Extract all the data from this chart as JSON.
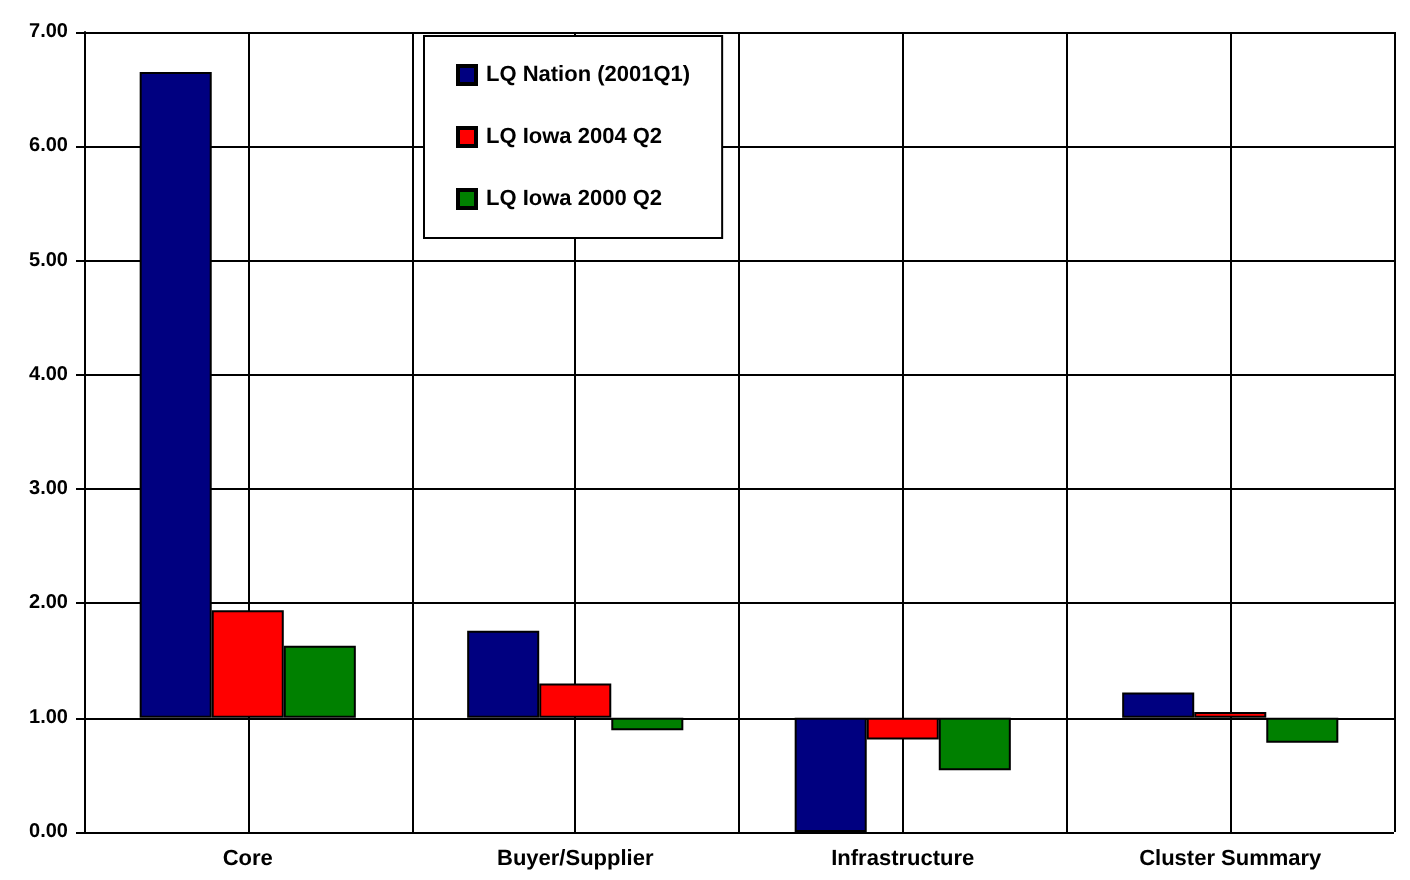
{
  "chart_data": {
    "type": "bar",
    "categories": [
      "Core",
      "Buyer/Supplier",
      "Infrastructure",
      "Cluster Summary"
    ],
    "series": [
      {
        "name": "LQ Nation (2001Q1)",
        "color": "#000080",
        "base": [
          1,
          1,
          1,
          1
        ],
        "values": [
          5.65,
          0.76,
          -1.0,
          0.22
        ]
      },
      {
        "name": "LQ Iowa 2004 Q2",
        "color": "#ff0000",
        "base": [
          1,
          1,
          1,
          1
        ],
        "values": [
          0.94,
          0.3,
          -0.19,
          0.05
        ]
      },
      {
        "name": "LQ Iowa 2000 Q2",
        "color": "#008000",
        "base": [
          1,
          1,
          1,
          1
        ],
        "values": [
          0.63,
          -0.11,
          -0.46,
          -0.22
        ]
      }
    ],
    "ylim": [
      0,
      7
    ],
    "yticks": [
      {
        "value": 0,
        "label": "0.00"
      },
      {
        "value": 1,
        "label": "1.00"
      },
      {
        "value": 2,
        "label": "2.00"
      },
      {
        "value": 3,
        "label": "3.00"
      },
      {
        "value": 4,
        "label": "4.00"
      },
      {
        "value": 5,
        "label": "5.00"
      },
      {
        "value": 6,
        "label": "6.00"
      },
      {
        "value": 7,
        "label": "7.00"
      }
    ],
    "grid": true,
    "legend": "top"
  }
}
